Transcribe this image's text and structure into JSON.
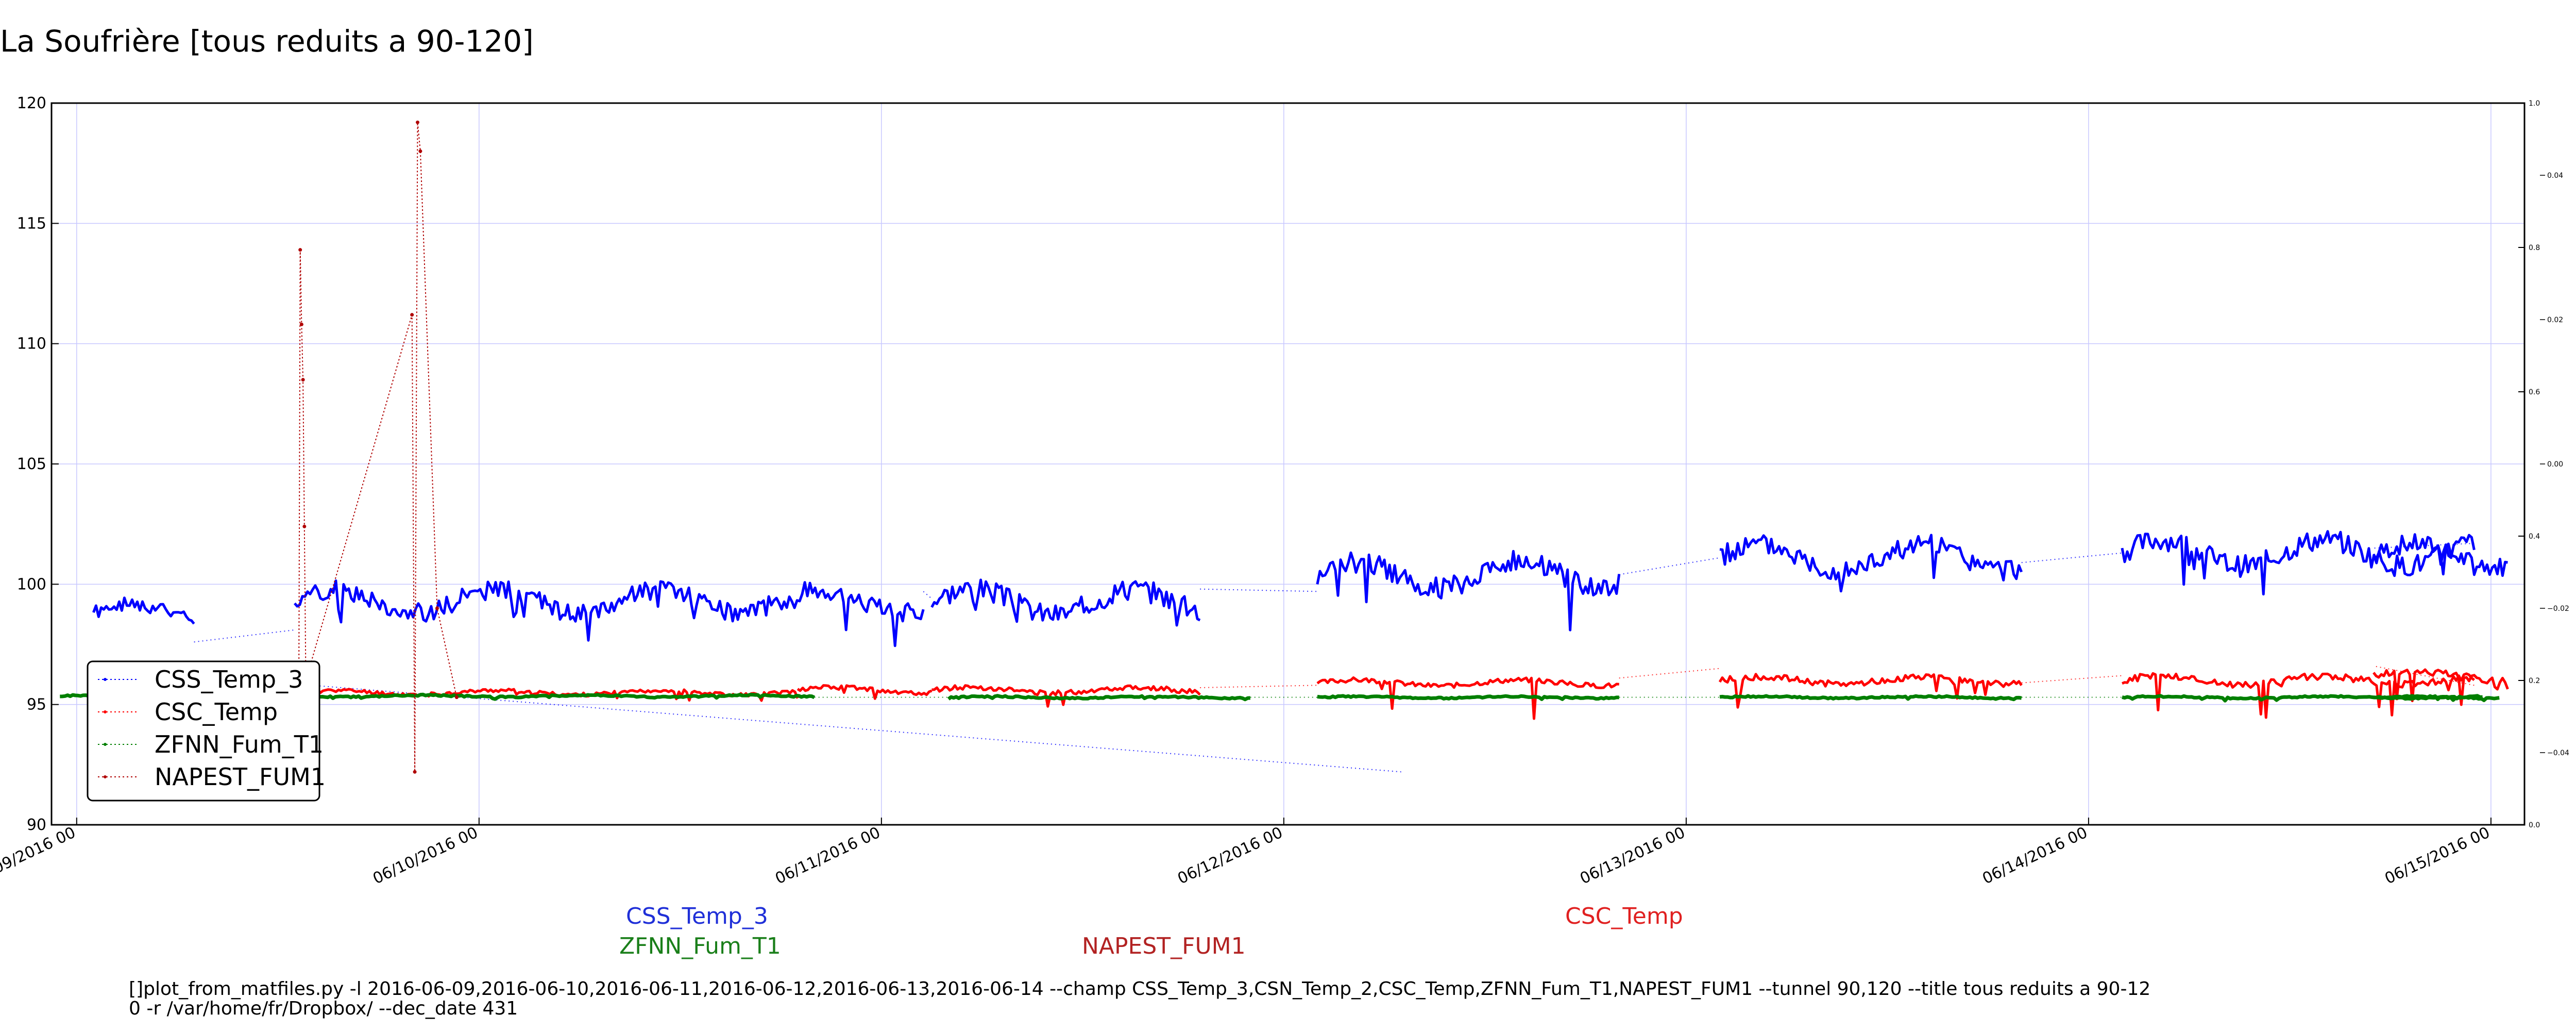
{
  "chart_data": {
    "type": "line",
    "title": "La Soufrière [tous reduits a 90-120]",
    "ylim": [
      90,
      120
    ],
    "yticks": [
      90,
      95,
      100,
      105,
      110,
      115,
      120
    ],
    "xlim": [
      "2016-06-08T22:30",
      "2016-06-15T02:00"
    ],
    "xticks": [
      {
        "x": "2016-06-09T00:00",
        "label": "06/09/2016 00"
      },
      {
        "x": "2016-06-10T00:00",
        "label": "06/10/2016 00"
      },
      {
        "x": "2016-06-11T00:00",
        "label": "06/11/2016 00"
      },
      {
        "x": "2016-06-12T00:00",
        "label": "06/12/2016 00"
      },
      {
        "x": "2016-06-13T00:00",
        "label": "06/13/2016 00"
      },
      {
        "x": "2016-06-14T00:00",
        "label": "06/14/2016 00"
      },
      {
        "x": "2016-06-15T00:00",
        "label": "06/15/2016 00"
      }
    ],
    "right_axis_1": {
      "ylim": [
        0.0,
        1.0
      ],
      "ticks": [
        "0.0",
        "0.2",
        "0.4",
        "0.6",
        "0.8",
        "1.0"
      ]
    },
    "right_axis_2": {
      "ylim": [
        -0.05,
        0.05
      ],
      "ticks": [
        "−0.04",
        "−0.02",
        "0.00",
        "0.02",
        "0.04"
      ]
    },
    "grid": true,
    "legend_position": "lower-left",
    "legend": [
      "CSS_Temp_3",
      "CSC_Temp",
      "ZFNN_Fum_T1",
      "NAPEST_FUM1"
    ],
    "bottom_labels": [
      {
        "text": "CSS_Temp_3",
        "color": "#1f2fd8"
      },
      {
        "text": "ZFNN_Fum_T1",
        "color": "#1a7f1a"
      },
      {
        "text": "NAPEST_FUM1",
        "color": "#b22222"
      },
      {
        "text": "CSC_Temp",
        "color": "#e02020"
      }
    ],
    "command_line_1": "[]plot_from_matfiles.py -l 2016-06-09,2016-06-10,2016-06-11,2016-06-12,2016-06-13,2016-06-14 --champ CSS_Temp_3,CSN_Temp_2,CSC_Temp,ZFNN_Fum_T1,NAPEST_FUM1 --tunnel 90,120 --title tous reduits a 90-12",
    "command_line_2": "0 -r /var/home/fr/Dropbox/ --dec_date 431",
    "series": [
      {
        "name": "CSS_Temp_3",
        "color": "#0000ff",
        "segments": [
          {
            "start": "2016-06-09T01:00",
            "end": "2016-06-09T07:00",
            "base": 98.8,
            "amp": 0.6,
            "spike": 0.8,
            "seed": 1
          },
          {
            "start": "2016-06-09T13:00",
            "end": "2016-06-11T02:30",
            "base": 99.3,
            "amp": 0.8,
            "spike": 1.4,
            "seed": 2
          },
          {
            "start": "2016-06-11T03:00",
            "end": "2016-06-11T19:00",
            "base": 99.3,
            "amp": 0.9,
            "spike": 1.6,
            "seed": 3
          },
          {
            "start": "2016-06-12T02:00",
            "end": "2016-06-12T20:00",
            "base": 100.4,
            "amp": 0.9,
            "spike": 1.8,
            "seed": 4
          },
          {
            "start": "2016-06-13T02:00",
            "end": "2016-06-13T20:00",
            "base": 101.1,
            "amp": 0.9,
            "spike": 1.8,
            "seed": 5
          },
          {
            "start": "2016-06-14T02:00",
            "end": "2016-06-14T23:00",
            "base": 101.3,
            "amp": 0.9,
            "spike": 1.8,
            "seed": 6
          },
          {
            "start": "2016-06-14T17:00",
            "end": "2016-06-15T01:00",
            "base": 101.2,
            "amp": 0.8,
            "spike": 1.6,
            "seed": 7
          }
        ],
        "gaps": [
          {
            "x": [
              "2016-06-09T07:00",
              "2016-06-09T13:00"
            ],
            "y": [
              97.6,
              98.1
            ]
          },
          {
            "x": [
              "2016-06-11T02:30",
              "2016-06-11T03:00"
            ],
            "y": [
              99.7,
              99.4
            ]
          },
          {
            "x": [
              "2016-06-11T19:00",
              "2016-06-12T02:00"
            ],
            "y": [
              99.8,
              99.7
            ]
          },
          {
            "x": [
              "2016-06-12T20:00",
              "2016-06-13T02:00"
            ],
            "y": [
              100.4,
              101.1
            ]
          },
          {
            "x": [
              "2016-06-13T20:00",
              "2016-06-14T02:00"
            ],
            "y": [
              100.9,
              101.3
            ]
          },
          {
            "x": [
              "2016-06-14T23:00",
              "2016-06-14T17:00"
            ],
            "y": [
              101.7,
              101.5
            ]
          },
          {
            "x": [
              "2016-06-09T14:00",
              "2016-06-12T07:00"
            ],
            "y": [
              95.8,
              92.2
            ]
          }
        ]
      },
      {
        "name": "CSC_Temp",
        "color": "#ff0000",
        "segments": [
          {
            "start": "2016-06-09T13:00",
            "end": "2016-06-10T19:00",
            "base": 95.5,
            "amp": 0.15,
            "spike": 0.4,
            "seed": 11
          },
          {
            "start": "2016-06-10T19:00",
            "end": "2016-06-11T03:00",
            "base": 95.6,
            "amp": 0.2,
            "spike": 0.6,
            "seed": 12
          },
          {
            "start": "2016-06-11T03:00",
            "end": "2016-06-11T19:00",
            "base": 95.6,
            "amp": 0.2,
            "spike": 0.8,
            "seed": 13
          },
          {
            "start": "2016-06-12T02:00",
            "end": "2016-06-12T20:00",
            "base": 95.9,
            "amp": 0.2,
            "spike": 2.0,
            "seed": 14
          },
          {
            "start": "2016-06-13T02:00",
            "end": "2016-06-13T20:00",
            "base": 96.0,
            "amp": 0.25,
            "spike": 1.2,
            "seed": 15
          },
          {
            "start": "2016-06-14T02:00",
            "end": "2016-06-14T23:00",
            "base": 96.0,
            "amp": 0.3,
            "spike": 1.4,
            "seed": 16
          },
          {
            "start": "2016-06-14T17:00",
            "end": "2016-06-15T01:00",
            "base": 96.2,
            "amp": 0.3,
            "spike": 1.2,
            "seed": 17
          }
        ],
        "gaps": [
          {
            "x": [
              "2016-06-11T19:00",
              "2016-06-12T02:00"
            ],
            "y": [
              95.7,
              95.8
            ]
          },
          {
            "x": [
              "2016-06-12T20:00",
              "2016-06-13T02:00"
            ],
            "y": [
              96.1,
              96.5
            ]
          },
          {
            "x": [
              "2016-06-13T20:00",
              "2016-06-14T02:00"
            ],
            "y": [
              95.9,
              96.2
            ]
          },
          {
            "x": [
              "2016-06-14T23:00",
              "2016-06-14T17:00"
            ],
            "y": [
              95.8,
              96.6
            ]
          }
        ]
      },
      {
        "name": "ZFNN_Fum_T1",
        "color": "#007f00",
        "segments": [
          {
            "start": "2016-06-08T23:00",
            "end": "2016-06-10T20:00",
            "base": 95.35,
            "amp": 0.06,
            "spike": 0.1,
            "seed": 21
          },
          {
            "start": "2016-06-11T04:00",
            "end": "2016-06-11T22:00",
            "base": 95.3,
            "amp": 0.06,
            "spike": 0.1,
            "seed": 22
          },
          {
            "start": "2016-06-12T02:00",
            "end": "2016-06-12T20:00",
            "base": 95.3,
            "amp": 0.06,
            "spike": 0.1,
            "seed": 23
          },
          {
            "start": "2016-06-13T02:00",
            "end": "2016-06-13T20:00",
            "base": 95.3,
            "amp": 0.06,
            "spike": 0.1,
            "seed": 24
          },
          {
            "start": "2016-06-14T02:00",
            "end": "2016-06-14T23:30",
            "base": 95.3,
            "amp": 0.06,
            "spike": 0.1,
            "seed": 25
          },
          {
            "start": "2016-06-14T17:00",
            "end": "2016-06-15T00:30",
            "base": 95.3,
            "amp": 0.06,
            "spike": 0.1,
            "seed": 26
          }
        ],
        "gaps": [
          {
            "x": [
              "2016-06-10T20:00",
              "2016-06-11T04:00"
            ],
            "y": [
              95.3,
              95.3
            ]
          },
          {
            "x": [
              "2016-06-11T22:00",
              "2016-06-12T02:00"
            ],
            "y": [
              95.3,
              95.3
            ]
          },
          {
            "x": [
              "2016-06-12T20:00",
              "2016-06-13T02:00"
            ],
            "y": [
              95.3,
              95.3
            ]
          },
          {
            "x": [
              "2016-06-13T20:00",
              "2016-06-14T02:00"
            ],
            "y": [
              95.3,
              95.3
            ]
          }
        ]
      },
      {
        "name": "NAPEST_FUM1",
        "color": "#b00000",
        "points": [
          {
            "x": "2016-06-09T13:15",
            "y": 95.4
          },
          {
            "x": "2016-06-09T13:20",
            "y": 113.9
          },
          {
            "x": "2016-06-09T13:25",
            "y": 110.8
          },
          {
            "x": "2016-06-09T13:30",
            "y": 108.5
          },
          {
            "x": "2016-06-09T13:35",
            "y": 102.4
          },
          {
            "x": "2016-06-09T13:40",
            "y": 96.0
          },
          {
            "x": "2016-06-09T20:00",
            "y": 111.2
          },
          {
            "x": "2016-06-09T20:10",
            "y": 92.2
          },
          {
            "x": "2016-06-09T20:20",
            "y": 119.2
          },
          {
            "x": "2016-06-09T20:30",
            "y": 118.0
          },
          {
            "x": "2016-06-09T21:30",
            "y": 99.0
          },
          {
            "x": "2016-06-09T22:40",
            "y": 95.3
          }
        ]
      }
    ]
  }
}
